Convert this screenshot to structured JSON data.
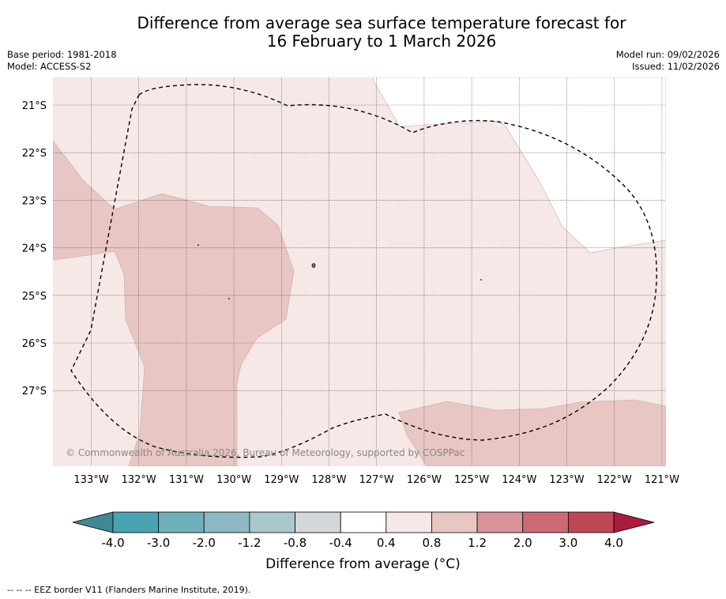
{
  "title": {
    "line1": "Difference from average sea surface temperature forecast for",
    "line2": "16 February to 1 March 2026"
  },
  "meta": {
    "base_period": "Base period: 1981-2018",
    "model": "Model: ACCESS-S2",
    "model_run": "Model run: 09/02/2026",
    "issued": "Issued: 11/02/2026"
  },
  "map": {
    "lat_labels": [
      "21°S",
      "22°S",
      "23°S",
      "24°S",
      "25°S",
      "26°S",
      "27°S"
    ],
    "lon_labels": [
      "133°W",
      "132°W",
      "131°W",
      "130°W",
      "129°W",
      "128°W",
      "127°W",
      "126°W",
      "125°W",
      "124°W",
      "123°W",
      "122°W",
      "121°W"
    ],
    "copyright": "© Commonwealth of Australia 2026, Bureau of Meteorology, supported by COSPPac",
    "colors": {
      "band_0_4_to_0_8": "#f5e8e7",
      "band_0_8_to_1_2": "#e8c6c3",
      "band_m0_4_to_0_4": "#ffffff"
    }
  },
  "colorbar": {
    "labels": [
      "-4.0",
      "-3.0",
      "-2.0",
      "-1.2",
      "-0.8",
      "-0.4",
      "0.4",
      "0.8",
      "1.2",
      "2.0",
      "3.0",
      "4.0"
    ],
    "colors": [
      "#4aa3b3",
      "#6fb0bd",
      "#8db9c4",
      "#aac7cc",
      "#d3d7d9",
      "#ffffff",
      "#f5e8e7",
      "#e8c6c3",
      "#d9939b",
      "#cb6a75",
      "#bf4657"
    ],
    "low_extend_color": "#3d8a95",
    "high_extend_color": "#aa1c3c",
    "title": "Difference from average (°C)"
  },
  "footnote": "--  --  -- EEZ border V11 (Flanders Marine Institute, 2019)."
}
